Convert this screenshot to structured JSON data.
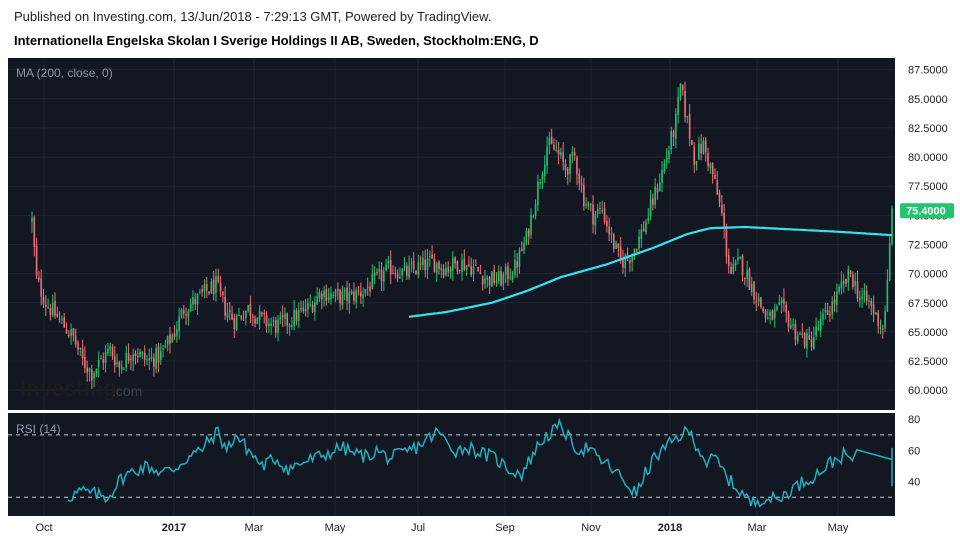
{
  "header": {
    "published": "Published on Investing.com, 13/Jun/2018 - 7:29:13 GMT, Powered by TradingView.",
    "instrument": "Internationella Engelska Skolan I Sverige Holdings II AB, Sweden, Stockholm:ENG, D"
  },
  "colors": {
    "background": "#131722",
    "up_candle": "#22c46e",
    "down_candle": "#f2707a",
    "ma_line": "#33e3f0",
    "rsi_line": "#1fb3c3",
    "price_badge": "#22c46e"
  },
  "logo": {
    "text": "Investing",
    "suffix": ".com"
  },
  "chart_data": [
    {
      "type": "candlestick",
      "indicator_label": "MA (200, close, 0)",
      "x_tick_labels": [
        "Oct",
        "2017",
        "Mar",
        "May",
        "Jul",
        "Sep",
        "Nov",
        "2018",
        "Mar",
        "May"
      ],
      "y_tick_labels": [
        "87.5000",
        "85.0000",
        "82.5000",
        "80.0000",
        "77.5000",
        "75.0000",
        "72.5000",
        "70.0000",
        "67.5000",
        "65.0000",
        "62.5000",
        "60.0000"
      ],
      "ylim": [
        58.3,
        88.5
      ],
      "last_price": "75.4000",
      "price_path": [
        [
          0,
          74.5
        ],
        [
          2,
          69.5
        ],
        [
          6,
          67.5
        ],
        [
          12,
          66.0
        ],
        [
          18,
          64.5
        ],
        [
          22,
          62.5
        ],
        [
          26,
          61.5
        ],
        [
          30,
          62.5
        ],
        [
          34,
          63.5
        ],
        [
          38,
          62.0
        ],
        [
          44,
          63.5
        ],
        [
          50,
          62.5
        ],
        [
          56,
          63.0
        ],
        [
          62,
          65.0
        ],
        [
          66,
          67.0
        ],
        [
          70,
          67.5
        ],
        [
          76,
          68.5
        ],
        [
          80,
          69.0
        ],
        [
          84,
          67.0
        ],
        [
          88,
          66.0
        ],
        [
          94,
          67.0
        ],
        [
          100,
          66.0
        ],
        [
          106,
          65.5
        ],
        [
          112,
          66.0
        ],
        [
          120,
          67.0
        ],
        [
          126,
          68.5
        ],
        [
          132,
          68.0
        ],
        [
          138,
          68.0
        ],
        [
          144,
          68.5
        ],
        [
          150,
          69.5
        ],
        [
          156,
          70.5
        ],
        [
          162,
          70.0
        ],
        [
          168,
          70.5
        ],
        [
          174,
          71.0
        ],
        [
          180,
          70.5
        ],
        [
          186,
          71.0
        ],
        [
          192,
          70.5
        ],
        [
          198,
          69.5
        ],
        [
          204,
          69.5
        ],
        [
          210,
          70.5
        ],
        [
          215,
          73.0
        ],
        [
          220,
          77.5
        ],
        [
          224,
          81.0
        ],
        [
          228,
          80.5
        ],
        [
          232,
          79.0
        ],
        [
          236,
          80.0
        ],
        [
          240,
          76.5
        ],
        [
          244,
          75.0
        ],
        [
          248,
          75.5
        ],
        [
          252,
          73.0
        ],
        [
          256,
          71.0
        ],
        [
          260,
          71.5
        ],
        [
          264,
          73.0
        ],
        [
          268,
          75.0
        ],
        [
          272,
          77.5
        ],
        [
          276,
          80.0
        ],
        [
          280,
          83.0
        ],
        [
          282,
          86.0
        ],
        [
          285,
          83.0
        ],
        [
          288,
          80.0
        ],
        [
          292,
          81.0
        ],
        [
          296,
          78.5
        ],
        [
          300,
          75.0
        ],
        [
          302,
          72.0
        ],
        [
          304,
          70.0
        ],
        [
          308,
          71.0
        ],
        [
          314,
          68.5
        ],
        [
          320,
          66.0
        ],
        [
          326,
          67.0
        ],
        [
          332,
          65.0
        ],
        [
          338,
          64.0
        ],
        [
          344,
          66.0
        ],
        [
          350,
          68.0
        ],
        [
          356,
          70.0
        ],
        [
          360,
          68.0
        ],
        [
          364,
          67.5
        ],
        [
          368,
          66.0
        ],
        [
          370,
          65.3
        ],
        [
          372,
          69.0
        ],
        [
          374,
          75.4
        ]
      ],
      "ma_line": {
        "start_index": 164,
        "path": [
          [
            164,
            66.3
          ],
          [
            180,
            66.7
          ],
          [
            200,
            67.5
          ],
          [
            215,
            68.5
          ],
          [
            230,
            69.7
          ],
          [
            250,
            70.8
          ],
          [
            270,
            72.2
          ],
          [
            285,
            73.4
          ],
          [
            295,
            73.9
          ],
          [
            310,
            74.0
          ],
          [
            330,
            73.8
          ],
          [
            350,
            73.6
          ],
          [
            374,
            73.3
          ]
        ]
      }
    },
    {
      "type": "line",
      "indicator_label": "RSI (14)",
      "y_tick_labels": [
        "80",
        "60",
        "40"
      ],
      "ylim": [
        18,
        84
      ],
      "ref_lines": [
        70,
        30
      ],
      "rsi_path": [
        [
          0,
          30
        ],
        [
          6,
          34
        ],
        [
          12,
          32
        ],
        [
          18,
          30
        ],
        [
          24,
          42
        ],
        [
          30,
          47
        ],
        [
          36,
          50
        ],
        [
          42,
          46
        ],
        [
          48,
          48
        ],
        [
          54,
          55
        ],
        [
          60,
          60
        ],
        [
          64,
          66
        ],
        [
          68,
          72
        ],
        [
          72,
          60
        ],
        [
          76,
          70
        ],
        [
          82,
          60
        ],
        [
          88,
          50
        ],
        [
          94,
          55
        ],
        [
          100,
          48
        ],
        [
          106,
          52
        ],
        [
          112,
          55
        ],
        [
          118,
          58
        ],
        [
          124,
          62
        ],
        [
          130,
          58
        ],
        [
          136,
          56
        ],
        [
          140,
          60
        ],
        [
          146,
          55
        ],
        [
          152,
          58
        ],
        [
          158,
          62
        ],
        [
          164,
          68
        ],
        [
          168,
          72
        ],
        [
          172,
          65
        ],
        [
          176,
          60
        ],
        [
          182,
          62
        ],
        [
          188,
          58
        ],
        [
          194,
          55
        ],
        [
          200,
          48
        ],
        [
          206,
          45
        ],
        [
          212,
          60
        ],
        [
          216,
          68
        ],
        [
          220,
          72
        ],
        [
          224,
          76
        ],
        [
          228,
          66
        ],
        [
          232,
          60
        ],
        [
          236,
          62
        ],
        [
          240,
          55
        ],
        [
          244,
          52
        ],
        [
          250,
          44
        ],
        [
          254,
          38
        ],
        [
          258,
          32
        ],
        [
          262,
          45
        ],
        [
          266,
          55
        ],
        [
          270,
          60
        ],
        [
          274,
          65
        ],
        [
          278,
          70
        ],
        [
          282,
          72
        ],
        [
          286,
          62
        ],
        [
          290,
          52
        ],
        [
          294,
          55
        ],
        [
          298,
          45
        ],
        [
          302,
          38
        ],
        [
          306,
          33
        ],
        [
          310,
          26
        ],
        [
          316,
          30
        ],
        [
          322,
          28
        ],
        [
          328,
          35
        ],
        [
          334,
          40
        ],
        [
          340,
          45
        ],
        [
          346,
          52
        ],
        [
          352,
          57
        ],
        [
          356,
          54
        ],
        [
          360,
          58
        ],
        [
          364,
          52
        ],
        [
          368,
          50
        ],
        [
          370,
          40
        ],
        [
          372,
          55
        ],
        [
          374,
          64
        ]
      ]
    }
  ]
}
